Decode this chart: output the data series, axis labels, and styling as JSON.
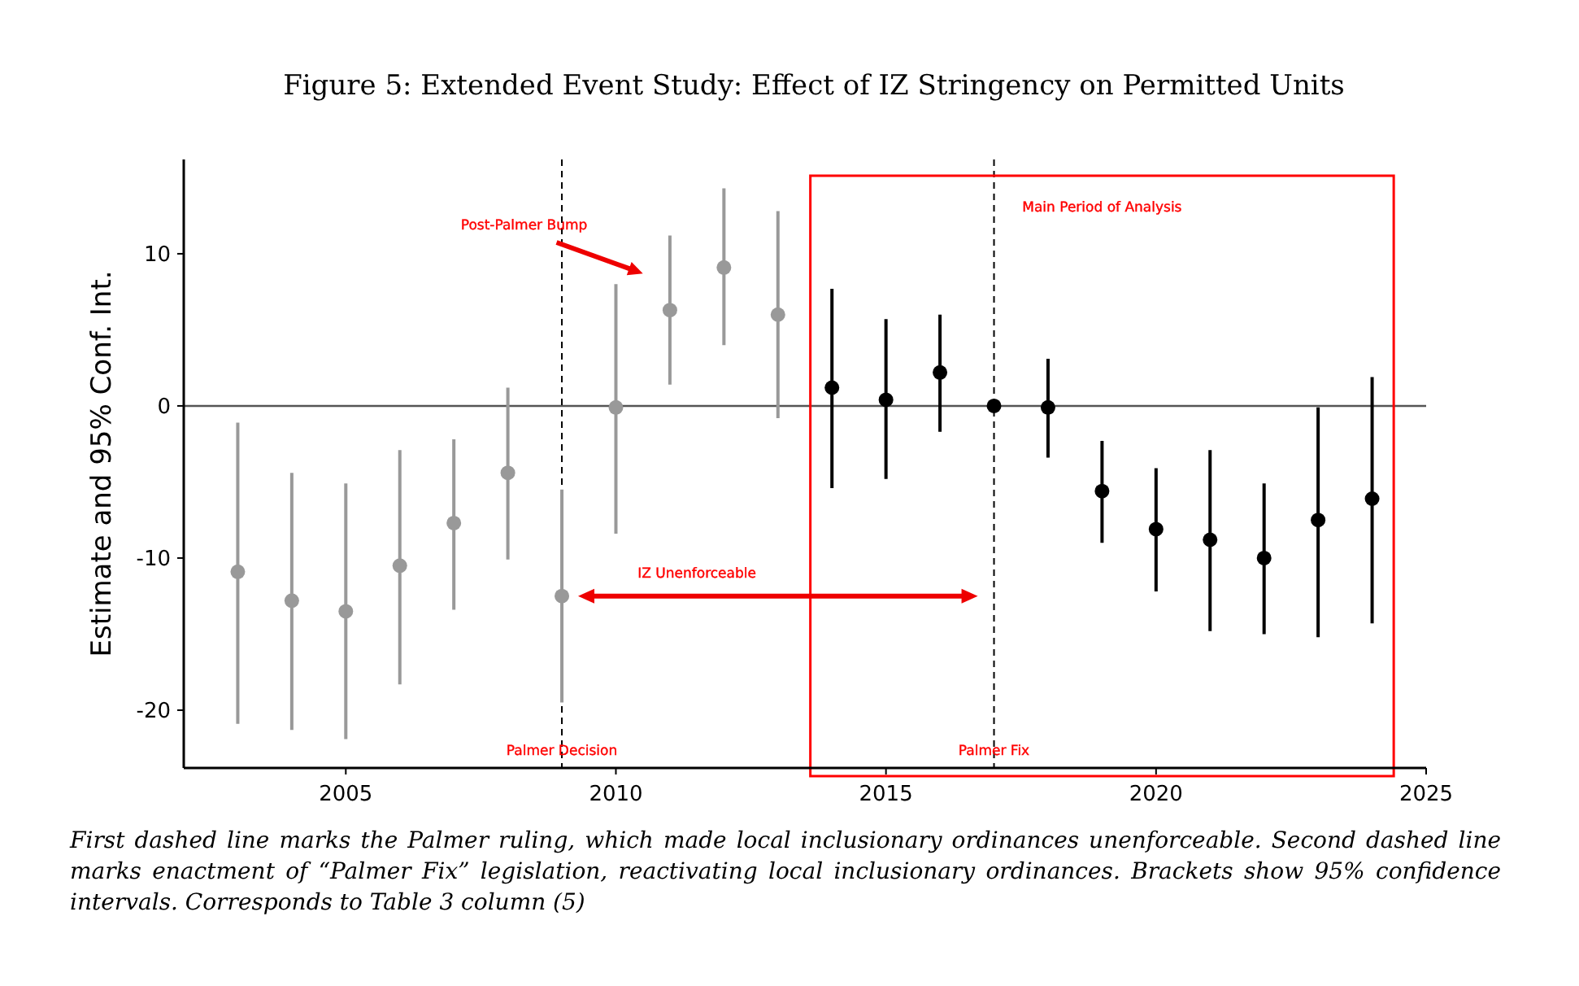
{
  "chart_data": {
    "type": "scatter",
    "title": "Figure 5: Extended Event Study: Effect of IZ Stringency on Permitted Units",
    "ylabel": "Estimate and 95% Conf. Int.",
    "xlim": [
      2002,
      2025
    ],
    "xticks": [
      2005,
      2010,
      2015,
      2020,
      2025
    ],
    "ylim": [
      -23.8,
      16.2
    ],
    "yticks": [
      -20,
      -10,
      0,
      10
    ],
    "grid": false,
    "marker": "circle",
    "series": [
      {
        "color": "#999999",
        "x": [
          2003,
          2004,
          2005,
          2006,
          2007,
          2008,
          2009,
          2010,
          2011,
          2012,
          2013
        ],
        "values": [
          -10.9,
          -12.8,
          -13.5,
          -10.5,
          -7.7,
          -4.4,
          -12.5,
          -0.1,
          6.3,
          9.1,
          6.0
        ],
        "errors": [
          [
            -20.9,
            -1.1
          ],
          [
            -21.3,
            -4.4
          ],
          [
            -21.9,
            -5.1
          ],
          [
            -18.3,
            -2.9
          ],
          [
            -13.4,
            -2.2
          ],
          [
            -10.1,
            1.2
          ],
          [
            -19.5,
            -5.5
          ],
          [
            -8.4,
            8.0
          ],
          [
            1.4,
            11.2
          ],
          [
            4.0,
            14.3
          ],
          [
            -0.8,
            12.8
          ]
        ]
      },
      {
        "color": "#000000",
        "x": [
          2014,
          2015,
          2016,
          2017,
          2018,
          2019,
          2020,
          2021,
          2022,
          2023,
          2024
        ],
        "values": [
          1.2,
          0.4,
          2.2,
          0,
          -0.1,
          -5.6,
          -8.1,
          -8.8,
          -10.0,
          -7.5,
          -6.1
        ],
        "errors": [
          [
            -5.4,
            7.7
          ],
          [
            -4.8,
            5.7
          ],
          [
            -1.7,
            6.0
          ],
          null,
          [
            -3.4,
            3.1
          ],
          [
            -9.0,
            -2.3
          ],
          [
            -12.2,
            -4.1
          ],
          [
            -14.8,
            -2.9
          ],
          [
            -15.0,
            -5.1
          ],
          [
            -15.2,
            -0.1
          ],
          [
            -14.3,
            1.9
          ]
        ]
      }
    ],
    "ref_lines": [
      {
        "axis": "y",
        "value": 0,
        "color": "#555555",
        "line_style": "solid"
      },
      {
        "axis": "x",
        "value": 2009,
        "label": "Palmer Decision",
        "color": "#000000",
        "line_style": "dashed"
      },
      {
        "axis": "x",
        "value": 2017,
        "label": "Palmer Fix",
        "color": "#000000",
        "line_style": "dashed"
      }
    ],
    "annotations": [
      "Post-Palmer Bump",
      "IZ Unenforceable",
      "Main Period of Analysis",
      "First dashed line marks the Palmer ruling, which made local inclusionary ordinances unenforceable. Second dashed line marks enactment of “Palmer Fix” legislation, reactivating local inclusionary ordinances. Brackets show 95% confidence intervals. Corresponds to Table 3 column (5)"
    ]
  }
}
